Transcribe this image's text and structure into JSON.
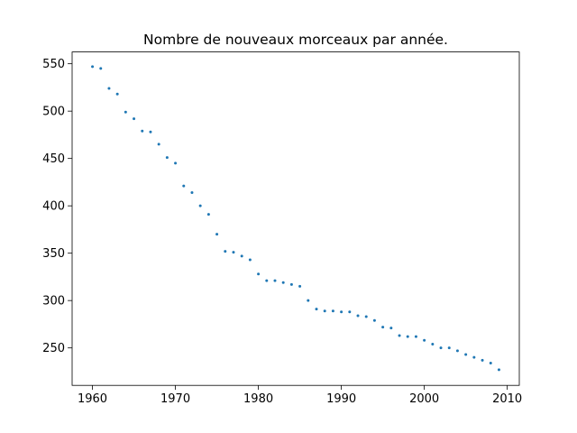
{
  "chart_data": {
    "type": "scatter",
    "title": "Nombre de nouveaux morceaux par année.",
    "xlabel": "",
    "ylabel": "",
    "xlim": [
      1957.55,
      2011.45
    ],
    "ylim": [
      210.45,
      562.45
    ],
    "x_ticks": [
      1960,
      1970,
      1980,
      1990,
      2000,
      2010
    ],
    "y_ticks": [
      250,
      300,
      350,
      400,
      450,
      500,
      550
    ],
    "grid": false,
    "marker_color": "#1f77b4",
    "x": [
      1960,
      1961,
      1962,
      1963,
      1964,
      1965,
      1966,
      1967,
      1968,
      1969,
      1970,
      1971,
      1972,
      1973,
      1974,
      1975,
      1976,
      1977,
      1978,
      1979,
      1980,
      1981,
      1982,
      1983,
      1984,
      1985,
      1986,
      1987,
      1988,
      1989,
      1990,
      1991,
      1992,
      1993,
      1994,
      1995,
      1996,
      1997,
      1998,
      1999,
      2000,
      2001,
      2002,
      2003,
      2004,
      2005,
      2006,
      2007,
      2008,
      2009
    ],
    "y": [
      547,
      545,
      524,
      518,
      499,
      492,
      479,
      478,
      465,
      451,
      445,
      421,
      414,
      400,
      391,
      370,
      352,
      351,
      347,
      343,
      328,
      321,
      321,
      319,
      317,
      315,
      300,
      291,
      289,
      289,
      288,
      288,
      284,
      283,
      279,
      272,
      271,
      263,
      262,
      262,
      258,
      254,
      250,
      250,
      247,
      243,
      240,
      237,
      234,
      227
    ]
  }
}
